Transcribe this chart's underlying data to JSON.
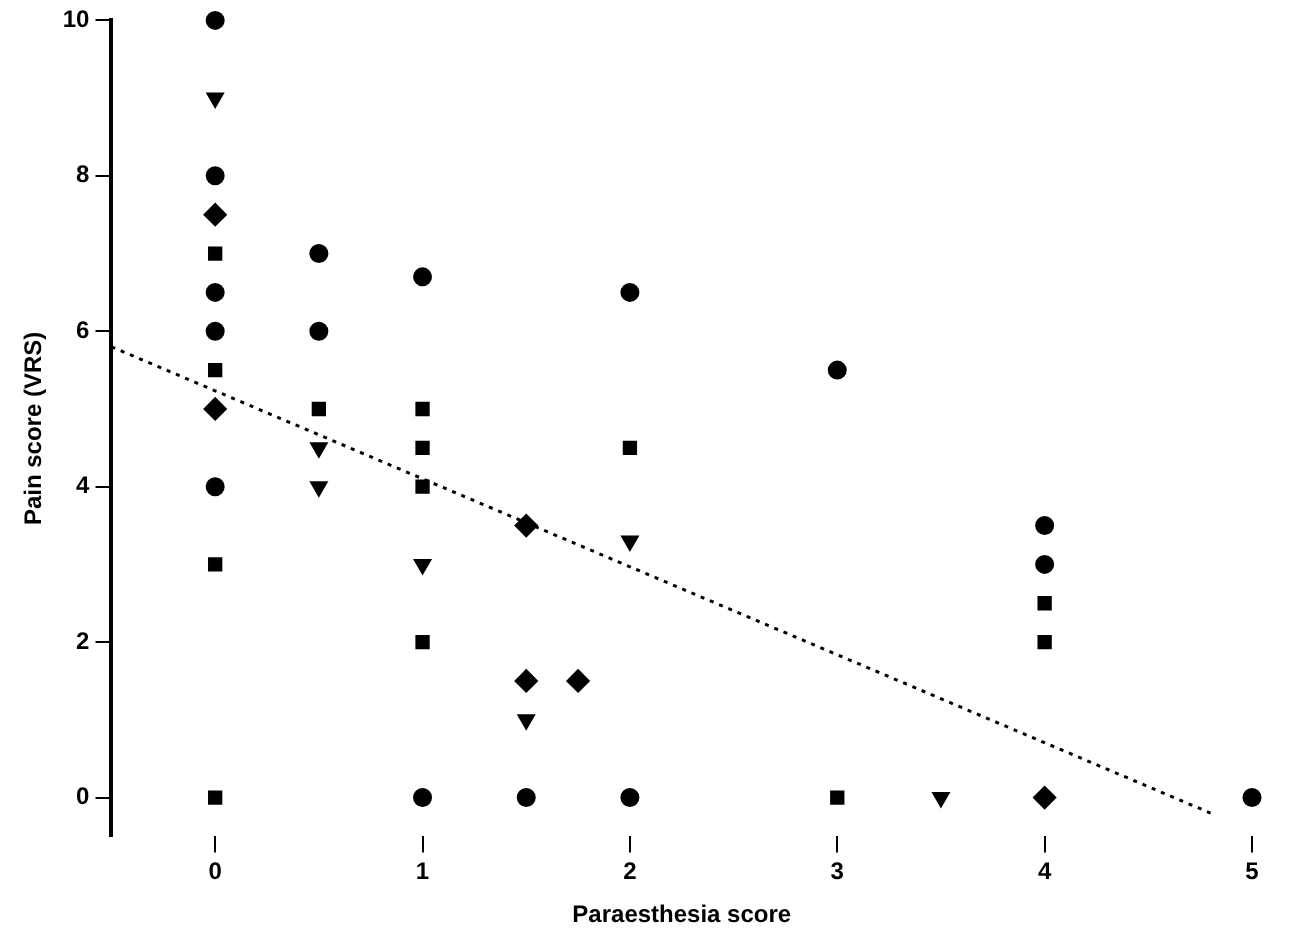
{
  "chart_data": {
    "type": "scatter",
    "xlabel": "Paraesthesia score",
    "ylabel": "Pain score (VRS)",
    "xlim": [
      -0.5,
      5
    ],
    "ylim": [
      -0.5,
      10
    ],
    "xticks": [
      0,
      1,
      2,
      3,
      4,
      5
    ],
    "yticks": [
      0,
      2,
      4,
      6,
      8,
      10
    ],
    "grid": false,
    "legend": false,
    "series": [
      {
        "color": "#000000",
        "marker": "circle",
        "x": [
          0,
          0,
          1,
          2,
          3,
          4,
          4,
          5
        ],
        "values": [
          8,
          6.5,
          6.7,
          6.5,
          5.5,
          3.5,
          3,
          0
        ]
      },
      {
        "color": "#000000",
        "marker": "circle",
        "x": [
          0,
          0,
          0,
          0.5,
          0.5,
          1,
          1.5,
          2
        ],
        "values": [
          10,
          6,
          4,
          7,
          6,
          0,
          0,
          0
        ]
      },
      {
        "color": "#000000",
        "marker": "square",
        "x": [
          0,
          0,
          0.5,
          1,
          1,
          1,
          2,
          4,
          4,
          0
        ],
        "values": [
          7,
          5.5,
          5,
          5,
          4.5,
          4,
          4.5,
          2.5,
          2,
          0
        ]
      },
      {
        "color": "#000000",
        "marker": "square",
        "x": [
          0,
          1,
          3
        ],
        "values": [
          3,
          2,
          0
        ]
      },
      {
        "color": "#000000",
        "marker": "triangle",
        "x": [
          0,
          0.5,
          0.5,
          1,
          3.5
        ],
        "values": [
          9,
          4.5,
          4,
          3,
          0
        ]
      },
      {
        "color": "#000000",
        "marker": "triangle",
        "x": [
          1.5,
          2
        ],
        "values": [
          1,
          3.3
        ]
      },
      {
        "color": "#000000",
        "marker": "diamond",
        "x": [
          0,
          1.5,
          1.5,
          1.75,
          4
        ],
        "values": [
          5,
          3.5,
          1.5,
          1.5,
          0
        ]
      },
      {
        "color": "#000000",
        "marker": "diamond",
        "x": [
          0
        ],
        "values": [
          7.5
        ]
      },
      {
        "type": "line",
        "color": "#000000",
        "marker": "none",
        "line_style": "dotted",
        "x": [
          -0.5,
          4.8
        ],
        "values": [
          5.8,
          -0.2
        ]
      }
    ]
  }
}
